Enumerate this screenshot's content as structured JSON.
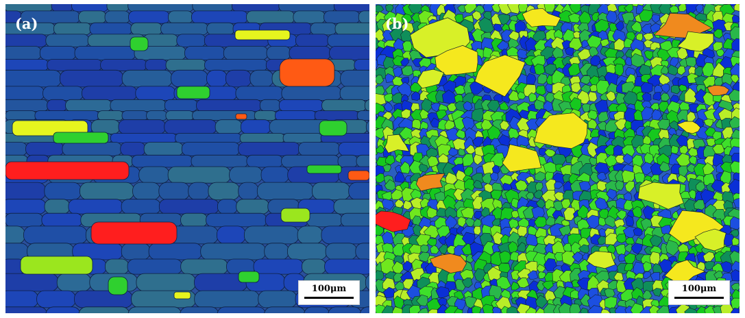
{
  "panels": [
    {
      "label": "(a)",
      "scalebar": "100μm",
      "background_color": "#2a4f9c",
      "grain_colors": [
        "#1d46b8",
        "#1f4fa6",
        "#23559e",
        "#265e9a",
        "#2c6a96",
        "#1e3ea8",
        "#2f6f8e"
      ],
      "boundary_color": "#0e1f3f",
      "grain_style": "elongated-horizontal",
      "highlight_colors": [
        "#ff1e1e",
        "#ff5a14",
        "#e6f51e",
        "#9be61e",
        "#2fd02f"
      ]
    },
    {
      "label": "(b)",
      "scalebar": "100μm",
      "background_color": "#2a5fbf",
      "grain_colors": [
        "#0a2fd6",
        "#1c4fe0",
        "#16c81e",
        "#3ee02a",
        "#2ab84a",
        "#70e81e",
        "#b8ee28",
        "#0f8f5a"
      ],
      "boundary_color": "#12212a",
      "grain_style": "equiaxed",
      "highlight_colors": [
        "#ff1e1e",
        "#f08a1e",
        "#f5e81e",
        "#d8f028"
      ]
    }
  ]
}
